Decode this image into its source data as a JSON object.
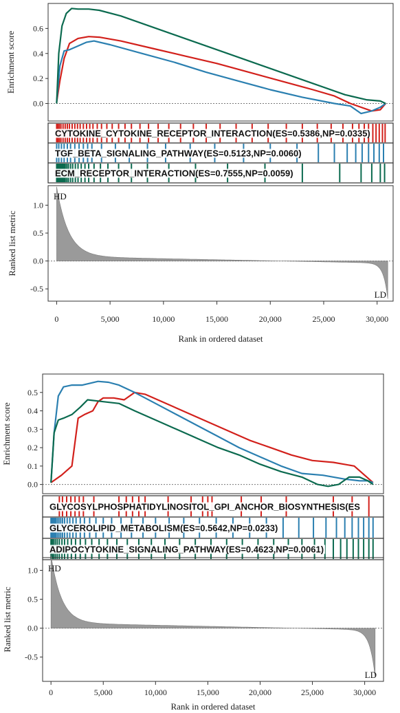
{
  "colors": {
    "red": "#d2201b",
    "blue": "#2a7fb0",
    "green": "#0b6a4f",
    "metric_fill": "#9a9a9a",
    "frame": "#333333"
  },
  "chart_data": [
    {
      "type": "line",
      "panel": "top",
      "ylabel_es": "Enrichment score",
      "ylabel_metric": "Ranked list metric",
      "xlabel": "Rank in ordered dataset",
      "x_ticks": [
        "0",
        "5,000",
        "10,000",
        "15,000",
        "20,000",
        "25,000",
        "30,000"
      ],
      "es_ticks": [
        "0.0",
        "0.2",
        "0.4",
        "0.6"
      ],
      "metric_ticks": [
        "-0.5",
        "0.0",
        "0.5",
        "1.0"
      ],
      "es_range": [
        -0.14,
        0.8
      ],
      "metric_range": [
        -0.72,
        1.35
      ],
      "x_range": [
        -800,
        31500
      ],
      "hd_label": "HD",
      "ld_label": "LD",
      "series": [
        {
          "name": "CYTOKINE_CYTOKINE_RECEPTOR_INTERACTION(ES=0.5386,NP=0.0335)",
          "color": "red",
          "x": [
            0,
            300,
            700,
            1200,
            2000,
            3000,
            4000,
            6000,
            9000,
            12000,
            15000,
            18000,
            21000,
            24000,
            26000,
            27500,
            28500,
            29500,
            30300,
            30800
          ],
          "y": [
            0.01,
            0.18,
            0.36,
            0.48,
            0.52,
            0.535,
            0.53,
            0.5,
            0.44,
            0.38,
            0.32,
            0.25,
            0.18,
            0.11,
            0.06,
            0.0,
            -0.03,
            -0.06,
            -0.05,
            0.0
          ],
          "hits": [
            0,
            120,
            250,
            400,
            600,
            800,
            1000,
            1200,
            1450,
            1700,
            1950,
            2200,
            2500,
            2800,
            3100,
            3400,
            3800,
            4200,
            4700,
            5200,
            5800,
            6400,
            7000,
            7800,
            8600,
            9500,
            10500,
            11600,
            12800,
            14000,
            15300,
            16800,
            18300,
            19800,
            21500,
            23000,
            24400,
            25700,
            26800,
            27700,
            28300,
            28800,
            29200,
            29600,
            29900,
            30200,
            30500,
            30750
          ]
        },
        {
          "name": "TGF_BETA_SIGNALING_PATHWAY(ES=0.5123,NP=0.0060)",
          "color": "blue",
          "x": [
            0,
            300,
            700,
            1200,
            2000,
            2800,
            3500,
            5000,
            8000,
            11000,
            14000,
            17000,
            20000,
            23000,
            26000,
            27500,
            28500,
            29500,
            30300,
            30800
          ],
          "y": [
            0.01,
            0.3,
            0.42,
            0.43,
            0.46,
            0.49,
            0.5,
            0.47,
            0.4,
            0.33,
            0.25,
            0.18,
            0.11,
            0.05,
            0.0,
            -0.02,
            -0.08,
            -0.06,
            -0.03,
            0.0
          ],
          "hits": [
            0,
            200,
            450,
            700,
            1000,
            1300,
            1700,
            2100,
            2500,
            2900,
            3300,
            4200,
            5500,
            6800,
            8500,
            10200,
            12500,
            14800,
            17500,
            20000,
            22500,
            24500,
            26000,
            27200,
            28000,
            28600,
            29200,
            29700,
            30200,
            30600
          ]
        },
        {
          "name": "ECM_RECEPTOR_INTERACTION(ES=0.7555,NP=0.0059)",
          "color": "green",
          "x": [
            0,
            200,
            500,
            900,
            1400,
            2000,
            3000,
            4000,
            6000,
            9000,
            12000,
            15000,
            18000,
            21000,
            24000,
            27000,
            29000,
            30300,
            30800
          ],
          "y": [
            0.0,
            0.4,
            0.62,
            0.72,
            0.76,
            0.755,
            0.755,
            0.745,
            0.7,
            0.61,
            0.52,
            0.43,
            0.34,
            0.25,
            0.16,
            0.07,
            0.03,
            0.02,
            0.0
          ],
          "hits": [
            0,
            80,
            170,
            260,
            360,
            460,
            560,
            680,
            800,
            950,
            1100,
            1300,
            1500,
            1750,
            2000,
            2300,
            2650,
            3000,
            3500,
            4100,
            4800,
            5800,
            7000,
            8500,
            10500,
            13000,
            16000,
            19500,
            23000,
            26500,
            28500,
            29500,
            30300,
            30700
          ]
        }
      ]
    },
    {
      "type": "line",
      "panel": "bottom",
      "ylabel_es": "Enrichment score",
      "ylabel_metric": "Ranked list metric",
      "xlabel": "Rank in ordered dataset",
      "x_ticks": [
        "0",
        "5,000",
        "10,000",
        "15,000",
        "20,000",
        "25,000",
        "30,000"
      ],
      "es_ticks": [
        "0.0",
        "0.1",
        "0.2",
        "0.3",
        "0.4",
        "0.5"
      ],
      "metric_ticks": [
        "-0.5",
        "0.0",
        "0.5",
        "1.0"
      ],
      "es_range": [
        -0.05,
        0.6
      ],
      "metric_range": [
        -0.92,
        1.22
      ],
      "x_range": [
        -800,
        31800
      ],
      "hd_label": "HD",
      "ld_label": "LD",
      "series": [
        {
          "name": "GLYCOSYLPHOSPHATIDYLINOSITOL_GPI_ANCHOR_BIOSYNTHESIS(ES",
          "color": "red",
          "x": [
            0,
            1000,
            2000,
            2600,
            3200,
            4000,
            4500,
            5000,
            6000,
            7000,
            8000,
            9000,
            11000,
            13000,
            15000,
            17000,
            19000,
            21000,
            23000,
            25000,
            27000,
            29000,
            30000,
            30800
          ],
          "y": [
            0.01,
            0.05,
            0.1,
            0.36,
            0.38,
            0.4,
            0.45,
            0.47,
            0.47,
            0.46,
            0.5,
            0.49,
            0.44,
            0.39,
            0.34,
            0.29,
            0.24,
            0.2,
            0.16,
            0.13,
            0.12,
            0.1,
            0.05,
            0.01
          ],
          "hits": [
            800,
            1100,
            1500,
            1900,
            2300,
            2700,
            3100,
            4100,
            6500,
            7200,
            7800,
            8400,
            9000,
            11200,
            13400,
            14500,
            15000,
            15400,
            18200,
            20100,
            22500,
            27000,
            28800,
            30400
          ]
        },
        {
          "name": "GLYCEROLIPID_METABOLISM(ES=0.5642,NP=0.0233)",
          "color": "blue",
          "x": [
            0,
            300,
            700,
            1200,
            2000,
            3000,
            4500,
            5500,
            6500,
            8000,
            10000,
            12000,
            14000,
            16000,
            18000,
            20000,
            22000,
            24000,
            26000,
            28000,
            29500,
            30300,
            30800
          ],
          "y": [
            0.01,
            0.28,
            0.48,
            0.53,
            0.54,
            0.54,
            0.56,
            0.555,
            0.54,
            0.5,
            0.44,
            0.38,
            0.32,
            0.26,
            0.2,
            0.15,
            0.1,
            0.06,
            0.05,
            0.03,
            0.02,
            0.02,
            0.01
          ],
          "hits": [
            0,
            100,
            200,
            320,
            450,
            600,
            760,
            930,
            1100,
            1300,
            1550,
            1800,
            2100,
            2400,
            2800,
            3200,
            3700,
            4300,
            5000,
            5800,
            6700,
            7700,
            8800,
            10000,
            11300,
            12700,
            14200,
            15800,
            17400,
            19000,
            20600,
            22200,
            23700,
            25100,
            26300,
            27300,
            28100,
            28800,
            29400,
            29900,
            30400,
            30800
          ]
        },
        {
          "name": "ADIPOCYTOKINE_SIGNALING_PATHWAY(ES=0.4623,NP=0.0061)",
          "color": "green",
          "x": [
            0,
            300,
            700,
            1200,
            2000,
            2800,
            3500,
            5000,
            6500,
            8000,
            10000,
            12000,
            14000,
            16000,
            18000,
            20000,
            22000,
            24000,
            25500,
            26500,
            27500,
            28500,
            29500,
            30300,
            30800
          ],
          "y": [
            0.01,
            0.28,
            0.35,
            0.36,
            0.38,
            0.42,
            0.46,
            0.45,
            0.44,
            0.4,
            0.35,
            0.3,
            0.25,
            0.2,
            0.16,
            0.11,
            0.07,
            0.04,
            0.0,
            -0.01,
            0.0,
            0.04,
            0.04,
            0.02,
            0.0
          ],
          "hits": [
            0,
            120,
            260,
            420,
            600,
            800,
            1050,
            1300,
            1600,
            1950,
            2350,
            2800,
            3300,
            3900,
            4600,
            5400,
            6300,
            7300,
            8400,
            9600,
            10900,
            12300,
            13800,
            15300,
            16800,
            18300,
            19800,
            21300,
            22700,
            24000,
            25200,
            26200,
            27000,
            27700,
            28300,
            28900,
            29400,
            29900,
            30400,
            30800
          ]
        }
      ]
    }
  ]
}
